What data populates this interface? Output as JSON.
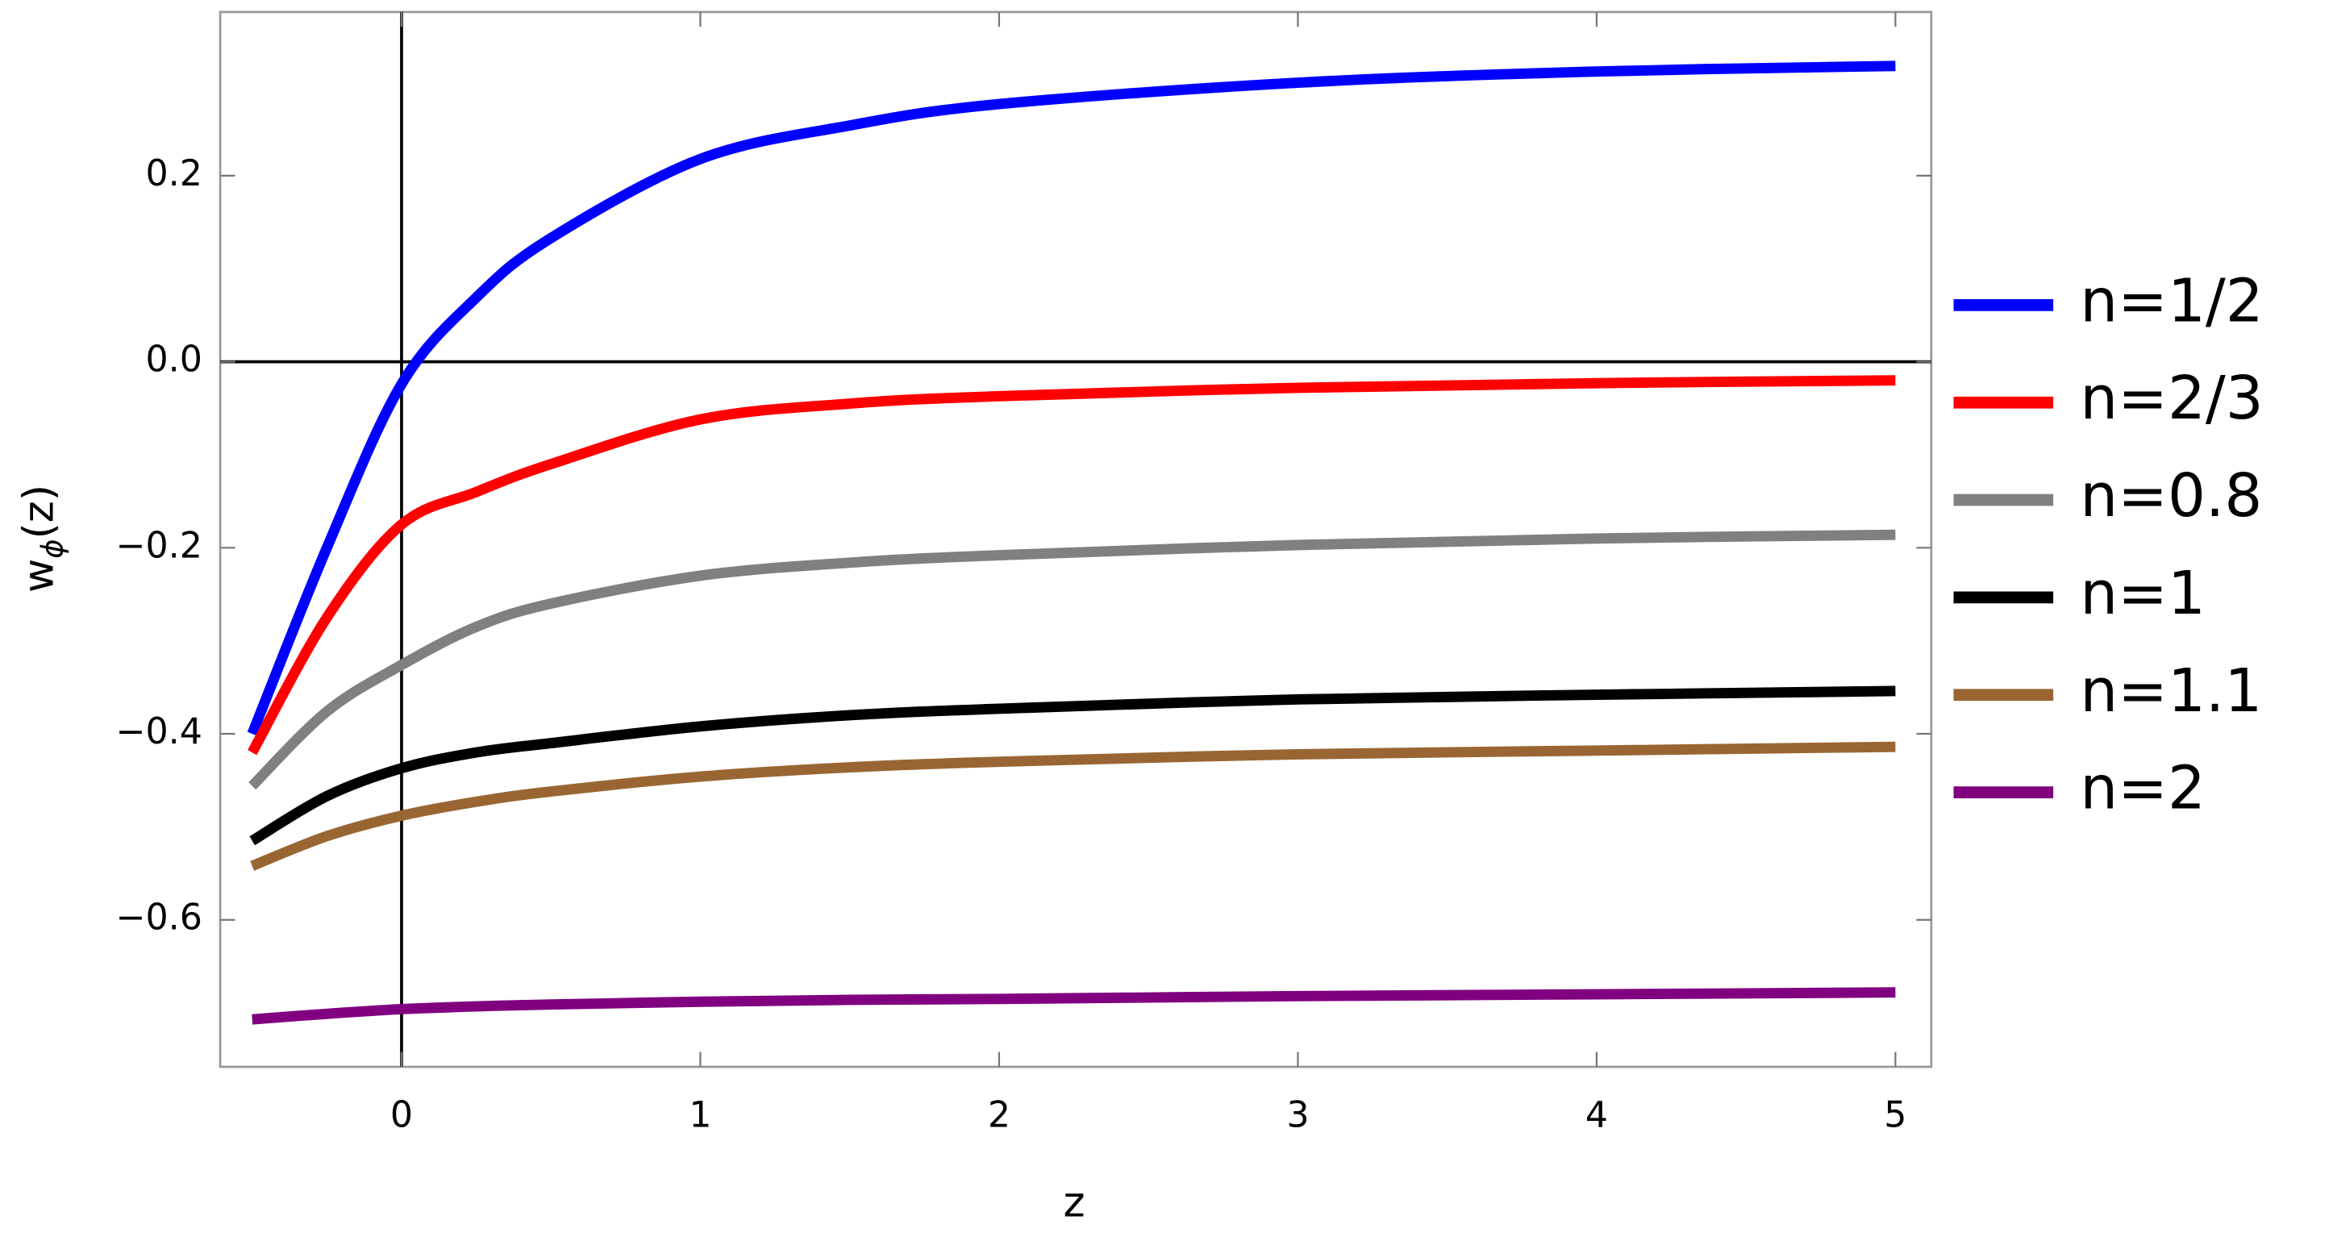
{
  "chart_data": {
    "type": "line",
    "xlabel": "z",
    "ylabel": {
      "main": "w",
      "subscript": "ϕ",
      "suffix": "(z)"
    },
    "x": [
      -0.5,
      -0.25,
      0,
      0.25,
      0.5,
      1,
      1.5,
      2,
      3,
      4,
      5
    ],
    "series": [
      {
        "name": "n=1/2",
        "color": "#0000ff",
        "values": [
          -0.4,
          -0.2,
          -0.024,
          0.069,
          0.133,
          0.218,
          0.254,
          0.277,
          0.3,
          0.312,
          0.318
        ]
      },
      {
        "name": "n=2/3",
        "color": "#ff0000",
        "values": [
          -0.42,
          -0.275,
          -0.175,
          -0.14,
          -0.11,
          -0.062,
          -0.045,
          -0.037,
          -0.028,
          -0.023,
          -0.02
        ]
      },
      {
        "name": "n=0.8",
        "color": "#808080",
        "values": [
          -0.456,
          -0.376,
          -0.326,
          -0.285,
          -0.26,
          -0.23,
          -0.216,
          -0.208,
          -0.197,
          -0.19,
          -0.186
        ]
      },
      {
        "name": "n=1",
        "color": "#000000",
        "values": [
          -0.515,
          -0.467,
          -0.437,
          -0.42,
          -0.41,
          -0.392,
          -0.38,
          -0.373,
          -0.363,
          -0.358,
          -0.354
        ]
      },
      {
        "name": "n=1.1",
        "color": "#996633",
        "values": [
          -0.542,
          -0.51,
          -0.488,
          -0.473,
          -0.462,
          -0.446,
          -0.436,
          -0.43,
          -0.422,
          -0.418,
          -0.414
        ]
      },
      {
        "name": "n=2",
        "color": "#800080",
        "values": [
          -0.707,
          -0.701,
          -0.696,
          -0.693,
          -0.691,
          -0.688,
          -0.686,
          -0.685,
          -0.682,
          -0.68,
          -0.678
        ]
      }
    ],
    "xlim": [
      -0.607,
      5.12
    ],
    "ylim": [
      -0.758,
      0.376
    ],
    "xticks": [
      0,
      1,
      2,
      3,
      4,
      5
    ],
    "yticks": [
      {
        "value": -0.6,
        "label": "−0.6"
      },
      {
        "value": -0.4,
        "label": "−0.4"
      },
      {
        "value": -0.2,
        "label": "−0.2"
      },
      {
        "value": 0,
        "label": "0.0"
      },
      0.2
    ],
    "legend": "right"
  }
}
